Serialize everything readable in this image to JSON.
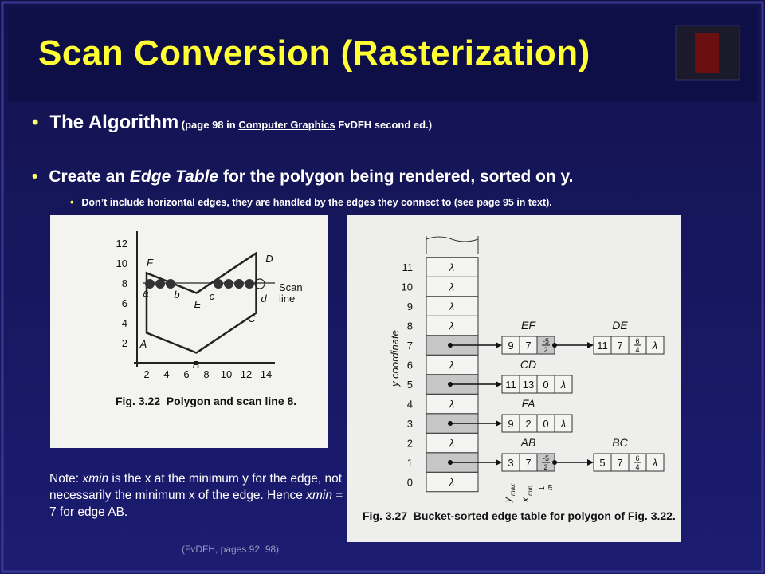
{
  "title": "Scan Conversion (Rasterization)",
  "bullets": [
    {
      "lead": "The Algorithm",
      "ref_open": " (page 98 in ",
      "book": "Computer Graphics",
      "ref_close": " FvDFH second ed.)"
    },
    {
      "before": "Create an ",
      "emph": "Edge Table",
      "after": " for the polygon being rendered, sorted on y.",
      "sub": "Don’t include horizontal edges, they are handled by the edges they connect to (see page 95 in text)."
    }
  ],
  "note": {
    "t1": "Note: ",
    "v1": "xmin",
    "t2": " is the x at the minimum y for the edge, not necessarily the minimum x of the edge. Hence ",
    "v2": "xmin",
    "t3": " = 7 for edge AB."
  },
  "credit": "(FvDFH, pages 92, 98)",
  "fig_322": {
    "y_labels": [
      "2",
      "4",
      "6",
      "8",
      "10",
      "12"
    ],
    "x_labels": [
      "2",
      "4",
      "6",
      "8",
      "10",
      "12",
      "14"
    ],
    "vertices": [
      "A",
      "B",
      "C",
      "D",
      "E",
      "F"
    ],
    "points": [
      "a",
      "b",
      "c",
      "d"
    ],
    "scan_label": [
      "Scan",
      "line"
    ],
    "caption": "Fig. 3.22  Polygon and scan line 8."
  },
  "fig_327": {
    "axis_label": "y coordinate",
    "rows": [
      "0",
      "1",
      "2",
      "3",
      "4",
      "5",
      "6",
      "7",
      "8",
      "9",
      "10",
      "11"
    ],
    "empty": "λ",
    "chains": [
      {
        "records": [
          {
            "name": "EF",
            "cells": [
              "9",
              "7",
              {
                "num": "-5",
                "den": "2"
              }
            ]
          },
          {
            "name": "DE",
            "cells": [
              "11",
              "7",
              {
                "num": "6",
                "den": "4"
              }
            ]
          }
        ]
      },
      {
        "records": [
          {
            "name": "CD",
            "cells": [
              "11",
              "13",
              "0"
            ]
          }
        ]
      },
      {
        "records": [
          {
            "name": "FA",
            "cells": [
              "9",
              "2",
              "0"
            ]
          }
        ]
      },
      {
        "records": [
          {
            "name": "AB",
            "cells": [
              "3",
              "7",
              {
                "num": "-5",
                "den": "2"
              }
            ]
          },
          {
            "name": "BC",
            "cells": [
              "5",
              "7",
              {
                "num": "6",
                "den": "4"
              }
            ]
          }
        ]
      }
    ],
    "headers": [
      {
        "base": "y",
        "sub": "max"
      },
      {
        "base": "x",
        "sub": "min"
      },
      {
        "num": "1",
        "den": "m"
      }
    ],
    "caption": "Fig. 3.27  Bucket-sorted edge table for polygon of Fig. 3.22."
  }
}
